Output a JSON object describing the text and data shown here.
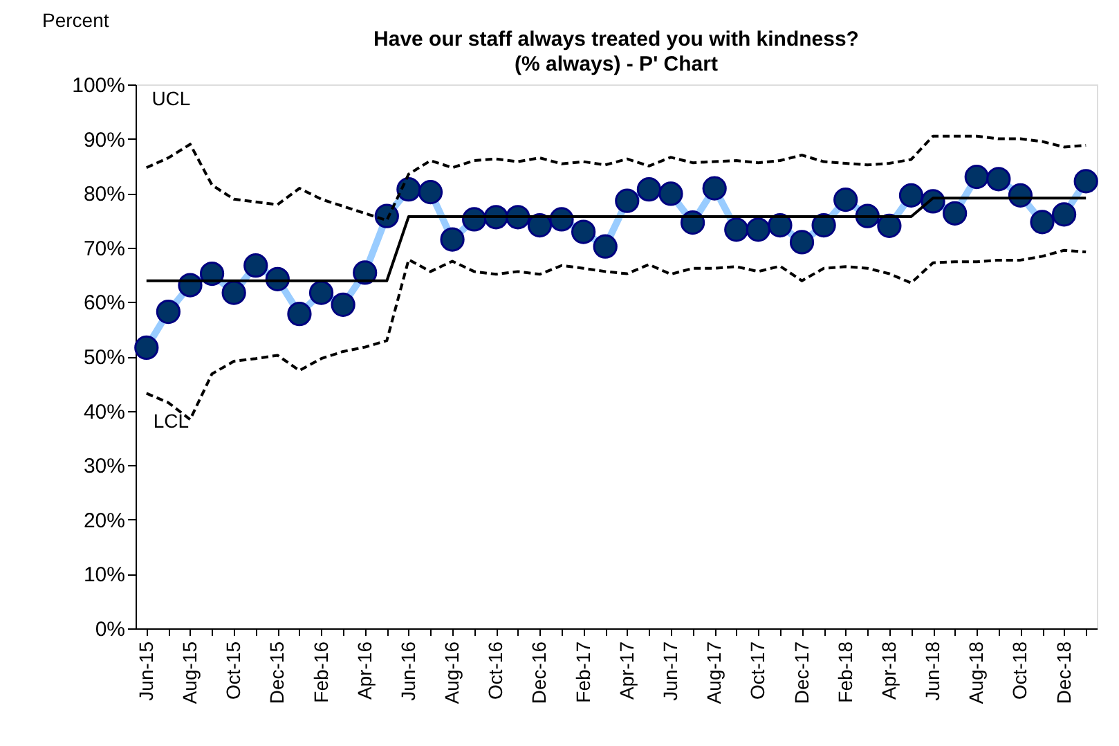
{
  "chart_data": {
    "type": "line",
    "title": "Have our staff always treated you with kindness?\n(% always) - P' Chart",
    "ylabel": "Percent",
    "categories": [
      "Jun-15",
      null,
      "Aug-15",
      null,
      "Oct-15",
      null,
      "Dec-15",
      null,
      "Feb-16",
      null,
      "Apr-16",
      null,
      "Jun-16",
      null,
      "Aug-16",
      null,
      "Oct-16",
      null,
      "Dec-16",
      null,
      "Feb-17",
      null,
      "Apr-17",
      null,
      "Jun-17",
      null,
      "Aug-17",
      null,
      "Oct-17",
      null,
      "Dec-17",
      null,
      "Feb-18",
      null,
      "Apr-18",
      null,
      "Jun-18",
      null,
      "Aug-18",
      null,
      "Oct-18",
      null,
      "Dec-18",
      null
    ],
    "series": [
      {
        "color": "#99ccff",
        "marker": "circle",
        "colors": [
          "#003366",
          "#003366",
          "#003366",
          "#003366",
          "#003366",
          "#003366",
          "#003366",
          "#003366",
          "#003366",
          "#003366",
          "#003366",
          "#003366",
          "#003366",
          "#003366",
          "#003366",
          "#003366",
          "#003366",
          "#003366",
          "#003366",
          "#003366",
          "#003366",
          "#003366",
          "#003366",
          "#003366",
          "#003366",
          "#003366",
          "#003366",
          "#003366",
          "#003366",
          "#003366",
          "#003366",
          "#003366",
          "#003366",
          "#003366",
          "#003366",
          "#003366",
          "#003366",
          "#003366",
          "#003366",
          "#003366",
          "#003366",
          "#003366",
          "#003366",
          "#003366"
        ],
        "values": [
          51.6,
          58.2,
          63.1,
          65.2,
          61.7,
          66.7,
          64.2,
          57.8,
          61.7,
          59.5,
          65.4,
          75.8,
          80.7,
          80.2,
          71.5,
          75.2,
          75.6,
          75.6,
          74.1,
          75.2,
          72.9,
          70.2,
          78.6,
          80.7,
          79.9,
          74.6,
          80.9,
          73.3,
          73.3,
          74.1,
          71.0,
          74.1,
          78.8,
          75.8,
          74.0,
          79.6,
          78.5,
          76.3,
          83.0,
          82.6,
          79.6,
          74.7,
          76.1,
          82.2
        ]
      },
      {
        "color": "#000000",
        "line_style": "solid",
        "values": [
          63.9,
          63.9,
          63.9,
          63.9,
          63.9,
          63.9,
          63.9,
          63.9,
          63.9,
          63.9,
          63.9,
          63.9,
          75.7,
          75.7,
          75.7,
          75.7,
          75.7,
          75.7,
          75.7,
          75.7,
          75.7,
          75.7,
          75.7,
          75.7,
          75.7,
          75.7,
          75.7,
          75.7,
          75.7,
          75.7,
          75.7,
          75.7,
          75.7,
          75.7,
          75.7,
          75.7,
          79.1,
          79.1,
          79.1,
          79.1,
          79.1,
          79.1,
          79.1,
          79.1
        ]
      },
      {
        "name": "UCL",
        "color": "#000000",
        "line_style": "dashed",
        "values": [
          84.7,
          86.5,
          89.0,
          81.5,
          78.9,
          78.4,
          77.9,
          80.9,
          78.9,
          77.6,
          76.3,
          75.0,
          83.5,
          86.0,
          84.7,
          86.0,
          86.3,
          85.8,
          86.5,
          85.4,
          85.8,
          85.2,
          86.3,
          85.0,
          86.6,
          85.6,
          85.8,
          86.0,
          85.6,
          86.0,
          87.0,
          85.8,
          85.5,
          85.2,
          85.5,
          86.2,
          90.5,
          90.5,
          90.5,
          90.0,
          90.0,
          89.5,
          88.5,
          88.8
        ]
      },
      {
        "name": "LCL",
        "color": "#000000",
        "line_style": "dashed",
        "values": [
          43.2,
          41.5,
          38.4,
          46.8,
          49.1,
          49.6,
          50.2,
          47.4,
          49.6,
          50.9,
          51.7,
          52.9,
          67.8,
          65.6,
          67.5,
          65.6,
          65.1,
          65.6,
          65.1,
          66.7,
          66.2,
          65.6,
          65.2,
          66.9,
          65.1,
          66.2,
          66.2,
          66.5,
          65.6,
          66.6,
          63.9,
          66.2,
          66.5,
          66.2,
          65.2,
          63.5,
          67.2,
          67.4,
          67.4,
          67.7,
          67.7,
          68.4,
          69.5,
          69.2
        ]
      }
    ],
    "ylim": [
      0,
      100
    ],
    "yticks": [
      {
        "value": 0,
        "label": "0%"
      },
      {
        "value": 10,
        "label": "10%"
      },
      {
        "value": 20,
        "label": "20%"
      },
      {
        "value": 30,
        "label": "30%"
      },
      {
        "value": 40,
        "label": "40%"
      },
      {
        "value": 50,
        "label": "50%"
      },
      {
        "value": 60,
        "label": "60%"
      },
      {
        "value": 70,
        "label": "70%"
      },
      {
        "value": 80,
        "label": "80%"
      },
      {
        "value": 90,
        "label": "90%"
      },
      {
        "value": 100,
        "label": "100%"
      }
    ],
    "grid": false
  }
}
